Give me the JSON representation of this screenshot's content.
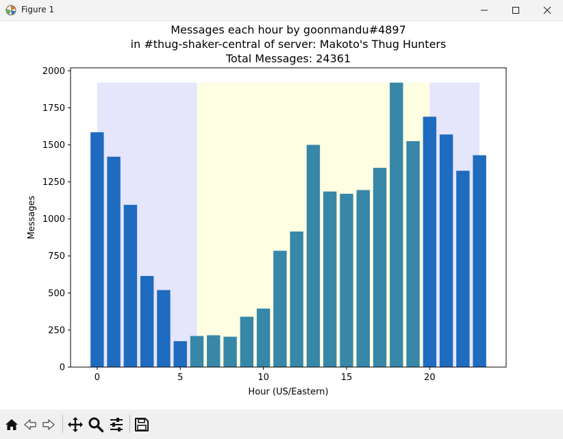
{
  "window": {
    "title": "Figure 1",
    "icon": "matplotlib-icon",
    "controls": [
      "minimize-icon",
      "maximize-icon",
      "close-icon"
    ]
  },
  "toolbar": {
    "buttons": [
      "home-icon",
      "back-icon",
      "forward-icon",
      "pan-icon",
      "zoom-icon",
      "configure-subplots-icon",
      "save-icon"
    ]
  },
  "chart_data": {
    "type": "bar",
    "title_lines": [
      "Messages each hour by goonmandu#4897",
      "in #thug-shaker-central of server: Makoto's Thug Hunters",
      "Total Messages: 24361"
    ],
    "xlabel": "Hour (US/Eastern)",
    "ylabel": "Messages",
    "x": [
      0,
      1,
      2,
      3,
      4,
      5,
      6,
      7,
      8,
      9,
      10,
      11,
      12,
      13,
      14,
      15,
      16,
      17,
      18,
      19,
      20,
      21,
      22,
      23
    ],
    "values": [
      1585,
      1420,
      1095,
      615,
      520,
      175,
      210,
      215,
      205,
      340,
      395,
      785,
      915,
      1500,
      1185,
      1170,
      1195,
      1345,
      1920,
      1525,
      1690,
      1570,
      1325,
      1430
    ],
    "xlim": [
      -1.6,
      24.6
    ],
    "ylim": [
      0,
      2020
    ],
    "xticks": [
      0,
      5,
      10,
      15,
      20
    ],
    "yticks": [
      0,
      250,
      500,
      750,
      1000,
      1250,
      1500,
      1750,
      2000
    ],
    "bar_colors": {
      "night": "#1f6bbf",
      "day": "#3787a8"
    },
    "shading": [
      {
        "from": 0,
        "to": 6,
        "color": "#e5e5fc"
      },
      {
        "from": 6,
        "to": 20,
        "color": "#fefee3"
      },
      {
        "from": 20,
        "to": 23,
        "color": "#e5e5fc"
      }
    ],
    "shading_top": 1920,
    "grid": false,
    "legend": "none"
  }
}
